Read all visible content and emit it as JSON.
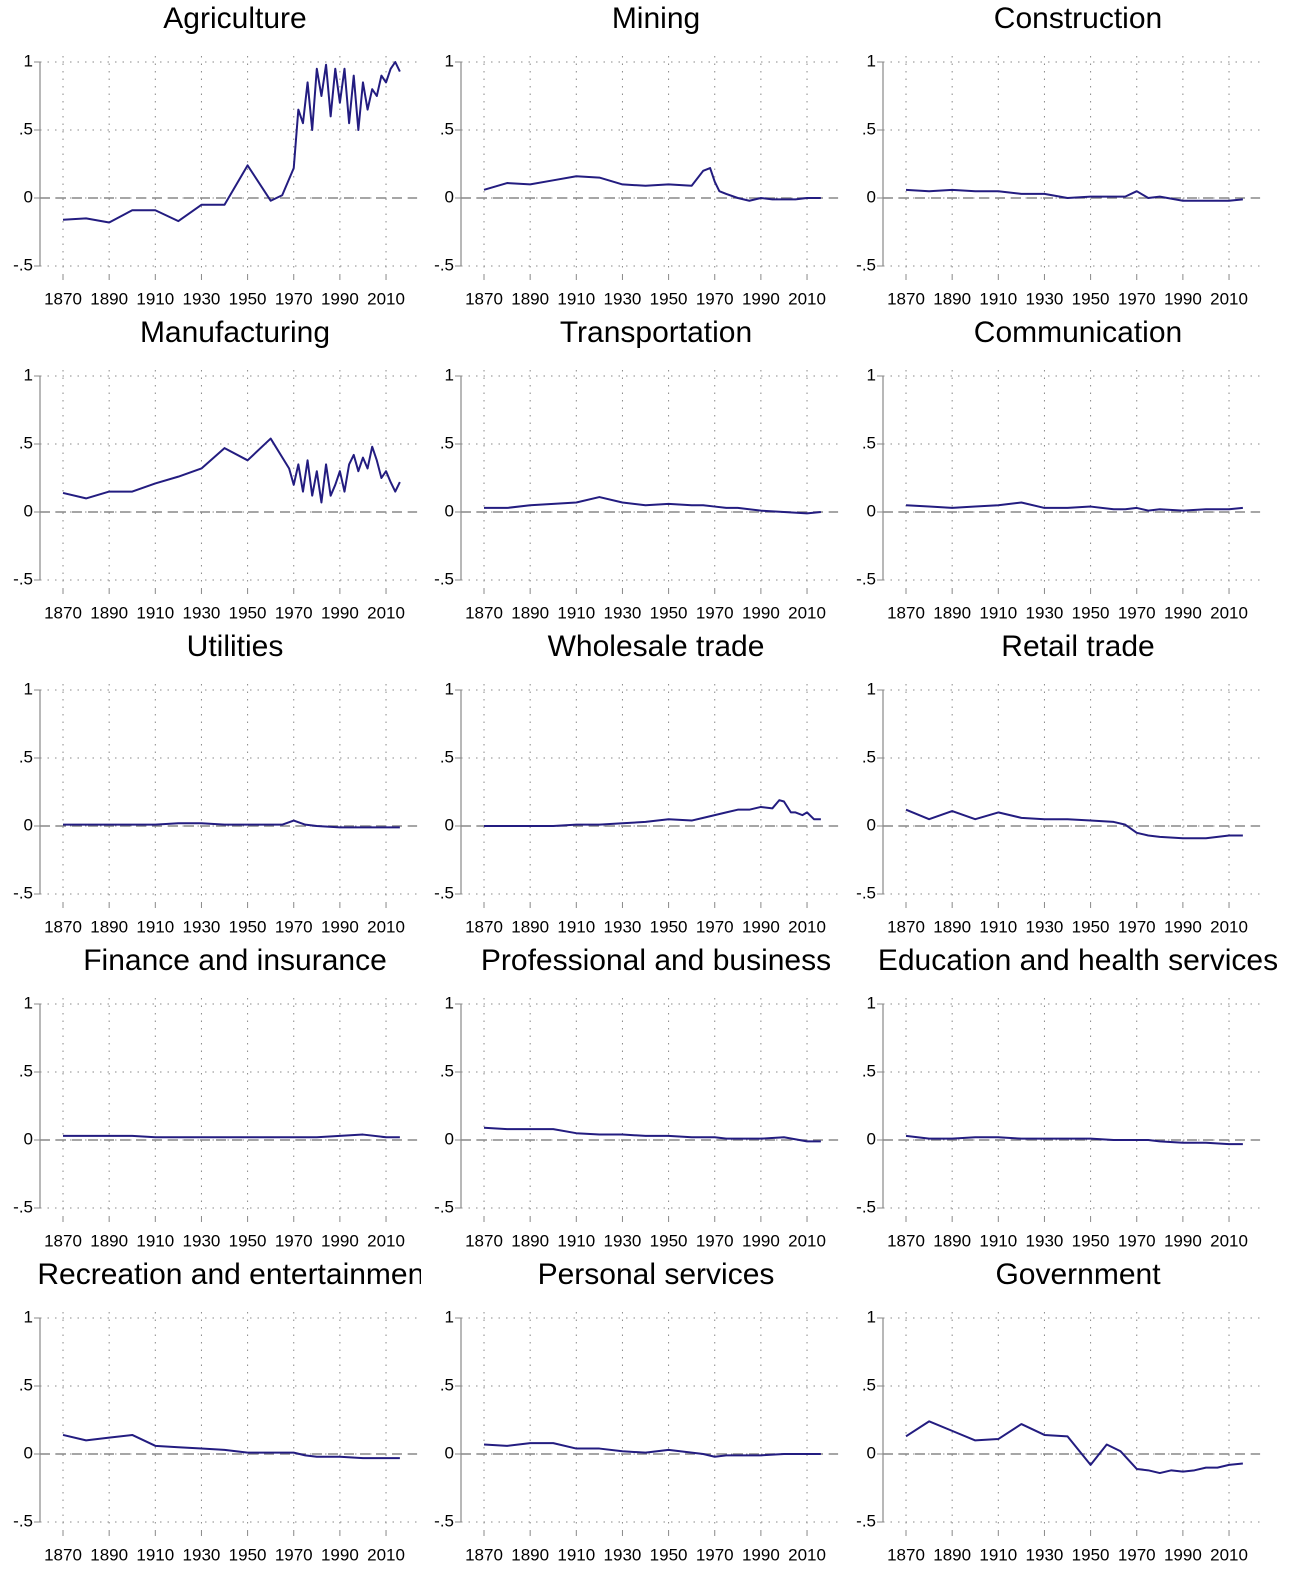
{
  "chart_data": [
    {
      "type": "line",
      "title": "Agriculture",
      "color": "#231c80",
      "xlim": [
        1868,
        2020
      ],
      "ylim": [
        -0.55,
        1.05
      ],
      "xticks": [
        1870,
        1890,
        1910,
        1930,
        1950,
        1970,
        1990,
        2010
      ],
      "yticks": [
        {
          "value": -0.5,
          "label": "-.5"
        },
        0,
        {
          "value": 0.5,
          "label": ".5"
        },
        1
      ],
      "grid": true,
      "reference_line": 0,
      "x": [
        1870,
        1880,
        1890,
        1900,
        1910,
        1920,
        1930,
        1940,
        1950,
        1960,
        1965,
        1970,
        1972,
        1974,
        1976,
        1978,
        1980,
        1982,
        1984,
        1986,
        1988,
        1990,
        1992,
        1994,
        1996,
        1998,
        2000,
        2002,
        2004,
        2006,
        2008,
        2010,
        2012,
        2014,
        2016
      ],
      "values": [
        -0.16,
        -0.15,
        -0.18,
        -0.09,
        -0.09,
        -0.17,
        -0.05,
        -0.05,
        0.24,
        -0.02,
        0.02,
        0.22,
        0.65,
        0.55,
        0.85,
        0.5,
        0.95,
        0.75,
        0.98,
        0.6,
        0.95,
        0.7,
        0.95,
        0.55,
        0.9,
        0.5,
        0.85,
        0.65,
        0.8,
        0.75,
        0.9,
        0.85,
        0.95,
        1.0,
        0.93
      ]
    },
    {
      "type": "line",
      "title": "Mining",
      "color": "#231c80",
      "xlim": [
        1868,
        2020
      ],
      "ylim": [
        -0.55,
        1.05
      ],
      "xticks": [
        1870,
        1890,
        1910,
        1930,
        1950,
        1970,
        1990,
        2010
      ],
      "yticks": [
        {
          "value": -0.5,
          "label": "-.5"
        },
        0,
        {
          "value": 0.5,
          "label": ".5"
        },
        1
      ],
      "grid": true,
      "reference_line": 0,
      "x": [
        1870,
        1880,
        1890,
        1900,
        1910,
        1920,
        1930,
        1940,
        1950,
        1960,
        1965,
        1968,
        1970,
        1972,
        1975,
        1980,
        1985,
        1990,
        1995,
        2000,
        2005,
        2010,
        2016
      ],
      "values": [
        0.06,
        0.11,
        0.1,
        0.13,
        0.16,
        0.15,
        0.1,
        0.09,
        0.1,
        0.09,
        0.2,
        0.22,
        0.12,
        0.05,
        0.03,
        0.0,
        -0.02,
        0.0,
        -0.01,
        -0.01,
        -0.01,
        0,
        0
      ]
    },
    {
      "type": "line",
      "title": "Construction",
      "color": "#231c80",
      "xlim": [
        1868,
        2020
      ],
      "ylim": [
        -0.55,
        1.05
      ],
      "xticks": [
        1870,
        1890,
        1910,
        1930,
        1950,
        1970,
        1990,
        2010
      ],
      "yticks": [
        {
          "value": -0.5,
          "label": "-.5"
        },
        0,
        {
          "value": 0.5,
          "label": ".5"
        },
        1
      ],
      "grid": true,
      "reference_line": 0,
      "x": [
        1870,
        1880,
        1890,
        1900,
        1910,
        1920,
        1930,
        1940,
        1950,
        1960,
        1965,
        1970,
        1975,
        1980,
        1990,
        2000,
        2010,
        2016
      ],
      "values": [
        0.06,
        0.05,
        0.06,
        0.05,
        0.05,
        0.03,
        0.03,
        0.0,
        0.01,
        0.01,
        0.01,
        0.05,
        0.0,
        0.01,
        -0.02,
        -0.02,
        -0.02,
        -0.01
      ]
    },
    {
      "type": "line",
      "title": "Manufacturing",
      "color": "#231c80",
      "xlim": [
        1868,
        2020
      ],
      "ylim": [
        -0.55,
        1.05
      ],
      "xticks": [
        1870,
        1890,
        1910,
        1930,
        1950,
        1970,
        1990,
        2010
      ],
      "yticks": [
        {
          "value": -0.5,
          "label": "-.5"
        },
        0,
        {
          "value": 0.5,
          "label": ".5"
        },
        1
      ],
      "grid": true,
      "reference_line": 0,
      "x": [
        1870,
        1880,
        1890,
        1900,
        1910,
        1920,
        1930,
        1940,
        1950,
        1960,
        1968,
        1970,
        1972,
        1974,
        1976,
        1978,
        1980,
        1982,
        1984,
        1986,
        1988,
        1990,
        1992,
        1994,
        1996,
        1998,
        2000,
        2002,
        2004,
        2006,
        2008,
        2010,
        2012,
        2014,
        2016
      ],
      "values": [
        0.14,
        0.1,
        0.15,
        0.15,
        0.21,
        0.26,
        0.32,
        0.47,
        0.38,
        0.54,
        0.32,
        0.2,
        0.35,
        0.15,
        0.38,
        0.12,
        0.3,
        0.07,
        0.35,
        0.12,
        0.2,
        0.3,
        0.15,
        0.35,
        0.42,
        0.3,
        0.4,
        0.32,
        0.48,
        0.38,
        0.25,
        0.3,
        0.22,
        0.15,
        0.22
      ]
    },
    {
      "type": "line",
      "title": "Transportation",
      "color": "#231c80",
      "xlim": [
        1868,
        2020
      ],
      "ylim": [
        -0.55,
        1.05
      ],
      "xticks": [
        1870,
        1890,
        1910,
        1930,
        1950,
        1970,
        1990,
        2010
      ],
      "yticks": [
        {
          "value": -0.5,
          "label": "-.5"
        },
        0,
        {
          "value": 0.5,
          "label": ".5"
        },
        1
      ],
      "grid": true,
      "reference_line": 0,
      "x": [
        1870,
        1880,
        1890,
        1900,
        1910,
        1920,
        1930,
        1940,
        1950,
        1960,
        1965,
        1970,
        1975,
        1980,
        1990,
        2000,
        2010,
        2016
      ],
      "values": [
        0.03,
        0.03,
        0.05,
        0.06,
        0.07,
        0.11,
        0.07,
        0.05,
        0.06,
        0.05,
        0.05,
        0.04,
        0.03,
        0.03,
        0.01,
        0.0,
        -0.01,
        0.0
      ]
    },
    {
      "type": "line",
      "title": "Communication",
      "color": "#231c80",
      "xlim": [
        1868,
        2020
      ],
      "ylim": [
        -0.55,
        1.05
      ],
      "xticks": [
        1870,
        1890,
        1910,
        1930,
        1950,
        1970,
        1990,
        2010
      ],
      "yticks": [
        {
          "value": -0.5,
          "label": "-.5"
        },
        0,
        {
          "value": 0.5,
          "label": ".5"
        },
        1
      ],
      "grid": true,
      "reference_line": 0,
      "x": [
        1870,
        1880,
        1890,
        1900,
        1910,
        1920,
        1930,
        1940,
        1950,
        1960,
        1965,
        1970,
        1975,
        1980,
        1990,
        2000,
        2010,
        2016
      ],
      "values": [
        0.05,
        0.04,
        0.03,
        0.04,
        0.05,
        0.07,
        0.03,
        0.03,
        0.04,
        0.02,
        0.02,
        0.03,
        0.01,
        0.02,
        0.01,
        0.02,
        0.02,
        0.03
      ]
    },
    {
      "type": "line",
      "title": "Utilities",
      "color": "#231c80",
      "xlim": [
        1868,
        2020
      ],
      "ylim": [
        -0.55,
        1.05
      ],
      "xticks": [
        1870,
        1890,
        1910,
        1930,
        1950,
        1970,
        1990,
        2010
      ],
      "yticks": [
        {
          "value": -0.5,
          "label": "-.5"
        },
        0,
        {
          "value": 0.5,
          "label": ".5"
        },
        1
      ],
      "grid": true,
      "reference_line": 0,
      "x": [
        1870,
        1880,
        1890,
        1900,
        1910,
        1920,
        1930,
        1940,
        1950,
        1960,
        1965,
        1970,
        1975,
        1980,
        1990,
        2000,
        2010,
        2016
      ],
      "values": [
        0.01,
        0.01,
        0.01,
        0.01,
        0.01,
        0.02,
        0.02,
        0.01,
        0.01,
        0.01,
        0.01,
        0.04,
        0.01,
        0.0,
        -0.01,
        -0.01,
        -0.01,
        -0.01
      ]
    },
    {
      "type": "line",
      "title": "Wholesale trade",
      "color": "#231c80",
      "xlim": [
        1868,
        2020
      ],
      "ylim": [
        -0.55,
        1.05
      ],
      "xticks": [
        1870,
        1890,
        1910,
        1930,
        1950,
        1970,
        1990,
        2010
      ],
      "yticks": [
        {
          "value": -0.5,
          "label": "-.5"
        },
        0,
        {
          "value": 0.5,
          "label": ".5"
        },
        1
      ],
      "grid": true,
      "reference_line": 0,
      "x": [
        1870,
        1880,
        1890,
        1900,
        1910,
        1920,
        1930,
        1940,
        1950,
        1960,
        1965,
        1970,
        1975,
        1980,
        1985,
        1990,
        1995,
        1998,
        2000,
        2003,
        2005,
        2008,
        2010,
        2013,
        2016
      ],
      "values": [
        0.0,
        0.0,
        0.0,
        0.0,
        0.01,
        0.01,
        0.02,
        0.03,
        0.05,
        0.04,
        0.06,
        0.08,
        0.1,
        0.12,
        0.12,
        0.14,
        0.13,
        0.19,
        0.18,
        0.1,
        0.1,
        0.08,
        0.1,
        0.05,
        0.05
      ]
    },
    {
      "type": "line",
      "title": "Retail trade",
      "color": "#231c80",
      "xlim": [
        1868,
        2020
      ],
      "ylim": [
        -0.55,
        1.05
      ],
      "xticks": [
        1870,
        1890,
        1910,
        1930,
        1950,
        1970,
        1990,
        2010
      ],
      "yticks": [
        {
          "value": -0.5,
          "label": "-.5"
        },
        0,
        {
          "value": 0.5,
          "label": ".5"
        },
        1
      ],
      "grid": true,
      "reference_line": 0,
      "x": [
        1870,
        1880,
        1890,
        1900,
        1910,
        1920,
        1930,
        1940,
        1950,
        1960,
        1965,
        1970,
        1975,
        1980,
        1990,
        2000,
        2010,
        2016
      ],
      "values": [
        0.12,
        0.05,
        0.11,
        0.05,
        0.1,
        0.06,
        0.05,
        0.05,
        0.04,
        0.03,
        0.01,
        -0.05,
        -0.07,
        -0.08,
        -0.09,
        -0.09,
        -0.07,
        -0.07
      ]
    },
    {
      "type": "line",
      "title": "Finance and insurance",
      "color": "#231c80",
      "xlim": [
        1868,
        2020
      ],
      "ylim": [
        -0.55,
        1.05
      ],
      "xticks": [
        1870,
        1890,
        1910,
        1930,
        1950,
        1970,
        1990,
        2010
      ],
      "yticks": [
        {
          "value": -0.5,
          "label": "-.5"
        },
        0,
        {
          "value": 0.5,
          "label": ".5"
        },
        1
      ],
      "grid": true,
      "reference_line": 0,
      "x": [
        1870,
        1880,
        1890,
        1900,
        1910,
        1920,
        1930,
        1940,
        1950,
        1960,
        1965,
        1970,
        1975,
        1980,
        1990,
        2000,
        2010,
        2016
      ],
      "values": [
        0.03,
        0.03,
        0.03,
        0.03,
        0.02,
        0.02,
        0.02,
        0.02,
        0.02,
        0.02,
        0.02,
        0.02,
        0.02,
        0.02,
        0.03,
        0.04,
        0.02,
        0.02
      ]
    },
    {
      "type": "line",
      "title": "Professional and business",
      "color": "#231c80",
      "xlim": [
        1868,
        2020
      ],
      "ylim": [
        -0.55,
        1.05
      ],
      "xticks": [
        1870,
        1890,
        1910,
        1930,
        1950,
        1970,
        1990,
        2010
      ],
      "yticks": [
        {
          "value": -0.5,
          "label": "-.5"
        },
        0,
        {
          "value": 0.5,
          "label": ".5"
        },
        1
      ],
      "grid": true,
      "reference_line": 0,
      "x": [
        1870,
        1880,
        1890,
        1900,
        1910,
        1920,
        1930,
        1940,
        1950,
        1960,
        1965,
        1970,
        1975,
        1980,
        1990,
        2000,
        2010,
        2016
      ],
      "values": [
        0.09,
        0.08,
        0.08,
        0.08,
        0.05,
        0.04,
        0.04,
        0.03,
        0.03,
        0.02,
        0.02,
        0.02,
        0.01,
        0.01,
        0.01,
        0.02,
        -0.01,
        -0.01
      ]
    },
    {
      "type": "line",
      "title": "Education and health services",
      "color": "#231c80",
      "xlim": [
        1868,
        2020
      ],
      "ylim": [
        -0.55,
        1.05
      ],
      "xticks": [
        1870,
        1890,
        1910,
        1930,
        1950,
        1970,
        1990,
        2010
      ],
      "yticks": [
        {
          "value": -0.5,
          "label": "-.5"
        },
        0,
        {
          "value": 0.5,
          "label": ".5"
        },
        1
      ],
      "grid": true,
      "reference_line": 0,
      "x": [
        1870,
        1880,
        1890,
        1900,
        1910,
        1920,
        1930,
        1940,
        1950,
        1960,
        1965,
        1970,
        1975,
        1980,
        1990,
        2000,
        2010,
        2016
      ],
      "values": [
        0.03,
        0.01,
        0.01,
        0.02,
        0.02,
        0.01,
        0.01,
        0.01,
        0.01,
        0.0,
        0.0,
        0.0,
        0.0,
        -0.01,
        -0.02,
        -0.02,
        -0.03,
        -0.03
      ]
    },
    {
      "type": "line",
      "title": "Recreation and entertainment",
      "color": "#231c80",
      "xlim": [
        1868,
        2020
      ],
      "ylim": [
        -0.55,
        1.05
      ],
      "xticks": [
        1870,
        1890,
        1910,
        1930,
        1950,
        1970,
        1990,
        2010
      ],
      "yticks": [
        {
          "value": -0.5,
          "label": "-.5"
        },
        0,
        {
          "value": 0.5,
          "label": ".5"
        },
        1
      ],
      "grid": true,
      "reference_line": 0,
      "x": [
        1870,
        1880,
        1890,
        1900,
        1910,
        1920,
        1930,
        1940,
        1950,
        1960,
        1965,
        1970,
        1975,
        1980,
        1990,
        2000,
        2010,
        2016
      ],
      "values": [
        0.14,
        0.1,
        0.12,
        0.14,
        0.06,
        0.05,
        0.04,
        0.03,
        0.01,
        0.01,
        0.01,
        0.01,
        -0.01,
        -0.02,
        -0.02,
        -0.03,
        -0.03,
        -0.03
      ]
    },
    {
      "type": "line",
      "title": "Personal services",
      "color": "#231c80",
      "xlim": [
        1868,
        2020
      ],
      "ylim": [
        -0.55,
        1.05
      ],
      "xticks": [
        1870,
        1890,
        1910,
        1930,
        1950,
        1970,
        1990,
        2010
      ],
      "yticks": [
        {
          "value": -0.5,
          "label": "-.5"
        },
        0,
        {
          "value": 0.5,
          "label": ".5"
        },
        1
      ],
      "grid": true,
      "reference_line": 0,
      "x": [
        1870,
        1880,
        1890,
        1900,
        1910,
        1920,
        1930,
        1940,
        1950,
        1960,
        1965,
        1970,
        1975,
        1980,
        1990,
        2000,
        2010,
        2016
      ],
      "values": [
        0.07,
        0.06,
        0.08,
        0.08,
        0.04,
        0.04,
        0.02,
        0.01,
        0.03,
        0.01,
        0.0,
        -0.02,
        -0.01,
        -0.01,
        -0.01,
        0.0,
        0.0,
        0.0
      ]
    },
    {
      "type": "line",
      "title": "Government",
      "color": "#231c80",
      "xlim": [
        1868,
        2020
      ],
      "ylim": [
        -0.55,
        1.05
      ],
      "xticks": [
        1870,
        1890,
        1910,
        1930,
        1950,
        1970,
        1990,
        2010
      ],
      "yticks": [
        {
          "value": -0.5,
          "label": "-.5"
        },
        0,
        {
          "value": 0.5,
          "label": ".5"
        },
        1
      ],
      "grid": true,
      "reference_line": 0,
      "x": [
        1870,
        1880,
        1890,
        1900,
        1910,
        1920,
        1930,
        1940,
        1950,
        1957,
        1963,
        1970,
        1975,
        1980,
        1985,
        1990,
        1995,
        2000,
        2005,
        2010,
        2016
      ],
      "values": [
        0.13,
        0.24,
        0.17,
        0.1,
        0.11,
        0.22,
        0.14,
        0.13,
        -0.08,
        0.07,
        0.02,
        -0.11,
        -0.12,
        -0.14,
        -0.12,
        -0.13,
        -0.12,
        -0.1,
        -0.1,
        -0.08,
        -0.07
      ]
    }
  ]
}
